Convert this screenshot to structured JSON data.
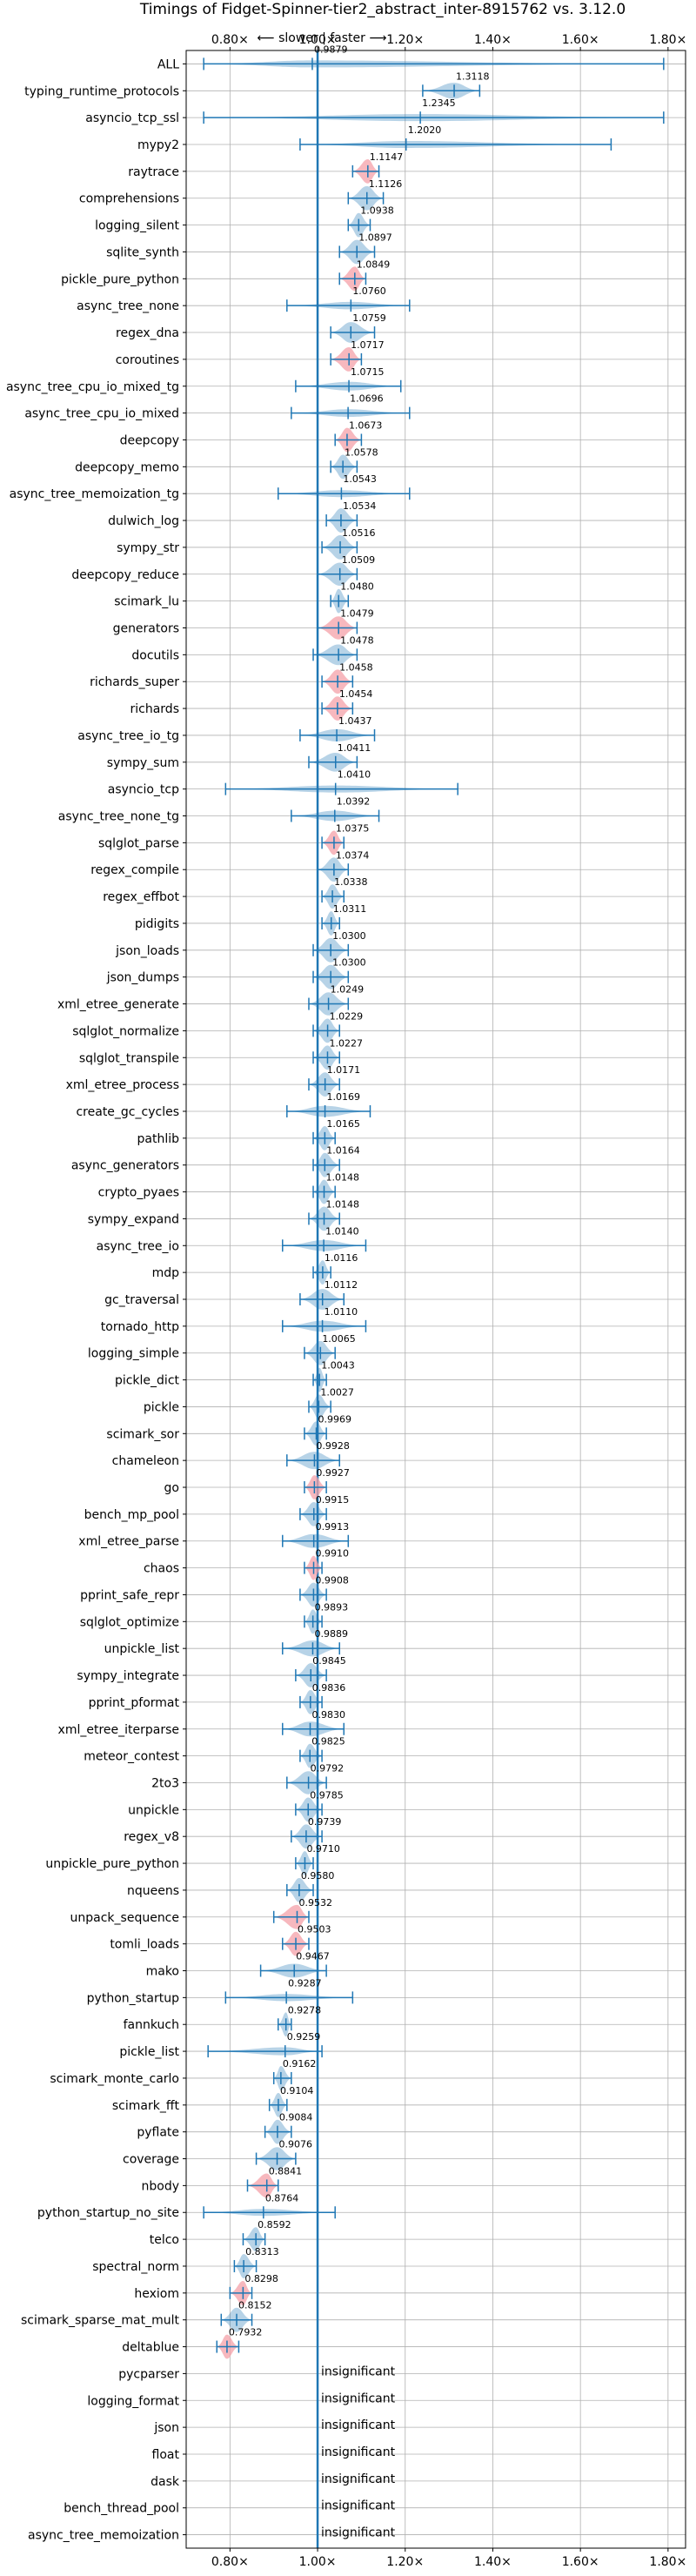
{
  "chart_data": {
    "type": "violin",
    "title": "Timings of Fidget-Spinner-tier2_abstract_inter-8915762 vs. 3.12.0",
    "subtitle": "⟵ slower | faster ⟶",
    "x_scale": "linear",
    "xlim": [
      0.7,
      1.84
    ],
    "x_ticks": [
      0.8,
      1.0,
      1.2,
      1.4,
      1.6,
      1.8
    ],
    "x_tick_labels": [
      "0.80×",
      "1.00×",
      "1.20×",
      "1.40×",
      "1.60×",
      "1.80×"
    ],
    "reference_line": 1.0,
    "grid": true,
    "colors": {
      "normal": "#1f77b4",
      "significant": "#f4a0a8",
      "reference": "#1f77b4"
    },
    "insignificant_label": "insignificant",
    "benchmarks": [
      {
        "name": "ALL",
        "value": 0.9879,
        "label": "0.9879",
        "min": 0.74,
        "max": 1.79,
        "significant": false
      },
      {
        "name": "typing_runtime_protocols",
        "value": 1.3118,
        "label": "1.3118",
        "min": 1.24,
        "max": 1.37,
        "significant": false
      },
      {
        "name": "asyncio_tcp_ssl",
        "value": 1.2345,
        "label": "1.2345",
        "min": 0.74,
        "max": 1.79,
        "significant": false
      },
      {
        "name": "mypy2",
        "value": 1.202,
        "label": "1.2020",
        "min": 0.96,
        "max": 1.67,
        "significant": false
      },
      {
        "name": "raytrace",
        "value": 1.1147,
        "label": "1.1147",
        "min": 1.08,
        "max": 1.14,
        "significant": true
      },
      {
        "name": "comprehensions",
        "value": 1.1126,
        "label": "1.1126",
        "min": 1.07,
        "max": 1.15,
        "significant": false
      },
      {
        "name": "logging_silent",
        "value": 1.0938,
        "label": "1.0938",
        "min": 1.07,
        "max": 1.12,
        "significant": false
      },
      {
        "name": "sqlite_synth",
        "value": 1.0897,
        "label": "1.0897",
        "min": 1.05,
        "max": 1.13,
        "significant": false
      },
      {
        "name": "pickle_pure_python",
        "value": 1.0849,
        "label": "1.0849",
        "min": 1.05,
        "max": 1.11,
        "significant": true
      },
      {
        "name": "async_tree_none",
        "value": 1.076,
        "label": "1.0760",
        "min": 0.93,
        "max": 1.21,
        "significant": false
      },
      {
        "name": "regex_dna",
        "value": 1.0759,
        "label": "1.0759",
        "min": 1.03,
        "max": 1.13,
        "significant": false
      },
      {
        "name": "coroutines",
        "value": 1.0717,
        "label": "1.0717",
        "min": 1.03,
        "max": 1.1,
        "significant": true
      },
      {
        "name": "async_tree_cpu_io_mixed_tg",
        "value": 1.0715,
        "label": "1.0715",
        "min": 0.95,
        "max": 1.19,
        "significant": false
      },
      {
        "name": "async_tree_cpu_io_mixed",
        "value": 1.0696,
        "label": "1.0696",
        "min": 0.94,
        "max": 1.21,
        "significant": false
      },
      {
        "name": "deepcopy",
        "value": 1.0673,
        "label": "1.0673",
        "min": 1.04,
        "max": 1.1,
        "significant": true
      },
      {
        "name": "deepcopy_memo",
        "value": 1.0578,
        "label": "1.0578",
        "min": 1.03,
        "max": 1.09,
        "significant": false
      },
      {
        "name": "async_tree_memoization_tg",
        "value": 1.0543,
        "label": "1.0543",
        "min": 0.91,
        "max": 1.21,
        "significant": false
      },
      {
        "name": "dulwich_log",
        "value": 1.0534,
        "label": "1.0534",
        "min": 1.02,
        "max": 1.09,
        "significant": false
      },
      {
        "name": "sympy_str",
        "value": 1.0516,
        "label": "1.0516",
        "min": 1.01,
        "max": 1.09,
        "significant": false
      },
      {
        "name": "deepcopy_reduce",
        "value": 1.0509,
        "label": "1.0509",
        "min": 1.0,
        "max": 1.09,
        "significant": false
      },
      {
        "name": "scimark_lu",
        "value": 1.048,
        "label": "1.0480",
        "min": 1.03,
        "max": 1.07,
        "significant": false
      },
      {
        "name": "generators",
        "value": 1.0479,
        "label": "1.0479",
        "min": 1.0,
        "max": 1.09,
        "significant": true
      },
      {
        "name": "docutils",
        "value": 1.0478,
        "label": "1.0478",
        "min": 0.99,
        "max": 1.09,
        "significant": false
      },
      {
        "name": "richards_super",
        "value": 1.0458,
        "label": "1.0458",
        "min": 1.01,
        "max": 1.08,
        "significant": true
      },
      {
        "name": "richards",
        "value": 1.0454,
        "label": "1.0454",
        "min": 1.01,
        "max": 1.08,
        "significant": true
      },
      {
        "name": "async_tree_io_tg",
        "value": 1.0437,
        "label": "1.0437",
        "min": 0.96,
        "max": 1.13,
        "significant": false
      },
      {
        "name": "sympy_sum",
        "value": 1.0411,
        "label": "1.0411",
        "min": 0.98,
        "max": 1.09,
        "significant": false
      },
      {
        "name": "asyncio_tcp",
        "value": 1.041,
        "label": "1.0410",
        "min": 0.79,
        "max": 1.32,
        "significant": false
      },
      {
        "name": "async_tree_none_tg",
        "value": 1.0392,
        "label": "1.0392",
        "min": 0.94,
        "max": 1.14,
        "significant": false
      },
      {
        "name": "sqlglot_parse",
        "value": 1.0375,
        "label": "1.0375",
        "min": 1.01,
        "max": 1.06,
        "significant": true
      },
      {
        "name": "regex_compile",
        "value": 1.0374,
        "label": "1.0374",
        "min": 1.0,
        "max": 1.07,
        "significant": false
      },
      {
        "name": "regex_effbot",
        "value": 1.0338,
        "label": "1.0338",
        "min": 1.01,
        "max": 1.06,
        "significant": false
      },
      {
        "name": "pidigits",
        "value": 1.0311,
        "label": "1.0311",
        "min": 1.01,
        "max": 1.05,
        "significant": false
      },
      {
        "name": "json_loads",
        "value": 1.03,
        "label": "1.0300",
        "min": 0.99,
        "max": 1.07,
        "significant": false
      },
      {
        "name": "json_dumps",
        "value": 1.03,
        "label": "1.0300",
        "min": 0.99,
        "max": 1.07,
        "significant": false
      },
      {
        "name": "xml_etree_generate",
        "value": 1.0249,
        "label": "1.0249",
        "min": 0.98,
        "max": 1.07,
        "significant": false
      },
      {
        "name": "sqlglot_normalize",
        "value": 1.0229,
        "label": "1.0229",
        "min": 0.99,
        "max": 1.05,
        "significant": false
      },
      {
        "name": "sqlglot_transpile",
        "value": 1.0227,
        "label": "1.0227",
        "min": 0.99,
        "max": 1.05,
        "significant": false
      },
      {
        "name": "xml_etree_process",
        "value": 1.0171,
        "label": "1.0171",
        "min": 0.98,
        "max": 1.05,
        "significant": false
      },
      {
        "name": "create_gc_cycles",
        "value": 1.0169,
        "label": "1.0169",
        "min": 0.93,
        "max": 1.12,
        "significant": false
      },
      {
        "name": "pathlib",
        "value": 1.0165,
        "label": "1.0165",
        "min": 0.99,
        "max": 1.04,
        "significant": false
      },
      {
        "name": "async_generators",
        "value": 1.0164,
        "label": "1.0164",
        "min": 0.99,
        "max": 1.05,
        "significant": false
      },
      {
        "name": "crypto_pyaes",
        "value": 1.0148,
        "label": "1.0148",
        "min": 0.99,
        "max": 1.04,
        "significant": false
      },
      {
        "name": "sympy_expand",
        "value": 1.0148,
        "label": "1.0148",
        "min": 0.98,
        "max": 1.05,
        "significant": false
      },
      {
        "name": "async_tree_io",
        "value": 1.014,
        "label": "1.0140",
        "min": 0.92,
        "max": 1.11,
        "significant": false
      },
      {
        "name": "mdp",
        "value": 1.0116,
        "label": "1.0116",
        "min": 0.99,
        "max": 1.03,
        "significant": false
      },
      {
        "name": "gc_traversal",
        "value": 1.0112,
        "label": "1.0112",
        "min": 0.96,
        "max": 1.06,
        "significant": false
      },
      {
        "name": "tornado_http",
        "value": 1.011,
        "label": "1.0110",
        "min": 0.92,
        "max": 1.11,
        "significant": false
      },
      {
        "name": "logging_simple",
        "value": 1.0065,
        "label": "1.0065",
        "min": 0.97,
        "max": 1.04,
        "significant": false
      },
      {
        "name": "pickle_dict",
        "value": 1.0043,
        "label": "1.0043",
        "min": 0.99,
        "max": 1.02,
        "significant": false
      },
      {
        "name": "pickle",
        "value": 1.0027,
        "label": "1.0027",
        "min": 0.98,
        "max": 1.03,
        "significant": false
      },
      {
        "name": "scimark_sor",
        "value": 0.9969,
        "label": "0.9969",
        "min": 0.97,
        "max": 1.02,
        "significant": false
      },
      {
        "name": "chameleon",
        "value": 0.9928,
        "label": "0.9928",
        "min": 0.93,
        "max": 1.05,
        "significant": false
      },
      {
        "name": "go",
        "value": 0.9927,
        "label": "0.9927",
        "min": 0.97,
        "max": 1.02,
        "significant": true
      },
      {
        "name": "bench_mp_pool",
        "value": 0.9915,
        "label": "0.9915",
        "min": 0.96,
        "max": 1.02,
        "significant": false
      },
      {
        "name": "xml_etree_parse",
        "value": 0.9913,
        "label": "0.9913",
        "min": 0.92,
        "max": 1.07,
        "significant": false
      },
      {
        "name": "chaos",
        "value": 0.991,
        "label": "0.9910",
        "min": 0.97,
        "max": 1.01,
        "significant": true
      },
      {
        "name": "pprint_safe_repr",
        "value": 0.9908,
        "label": "0.9908",
        "min": 0.96,
        "max": 1.02,
        "significant": false
      },
      {
        "name": "sqlglot_optimize",
        "value": 0.9893,
        "label": "0.9893",
        "min": 0.97,
        "max": 1.01,
        "significant": false
      },
      {
        "name": "unpickle_list",
        "value": 0.9889,
        "label": "0.9889",
        "min": 0.92,
        "max": 1.05,
        "significant": false
      },
      {
        "name": "sympy_integrate",
        "value": 0.9845,
        "label": "0.9845",
        "min": 0.95,
        "max": 1.02,
        "significant": false
      },
      {
        "name": "pprint_pformat",
        "value": 0.9836,
        "label": "0.9836",
        "min": 0.96,
        "max": 1.01,
        "significant": false
      },
      {
        "name": "xml_etree_iterparse",
        "value": 0.983,
        "label": "0.9830",
        "min": 0.92,
        "max": 1.06,
        "significant": false
      },
      {
        "name": "meteor_contest",
        "value": 0.9825,
        "label": "0.9825",
        "min": 0.96,
        "max": 1.01,
        "significant": false
      },
      {
        "name": "2to3",
        "value": 0.9792,
        "label": "0.9792",
        "min": 0.93,
        "max": 1.02,
        "significant": false
      },
      {
        "name": "unpickle",
        "value": 0.9785,
        "label": "0.9785",
        "min": 0.95,
        "max": 1.01,
        "significant": false
      },
      {
        "name": "regex_v8",
        "value": 0.9739,
        "label": "0.9739",
        "min": 0.94,
        "max": 1.01,
        "significant": false
      },
      {
        "name": "unpickle_pure_python",
        "value": 0.971,
        "label": "0.9710",
        "min": 0.95,
        "max": 0.99,
        "significant": false
      },
      {
        "name": "nqueens",
        "value": 0.958,
        "label": "0.9580",
        "min": 0.93,
        "max": 0.99,
        "significant": false
      },
      {
        "name": "unpack_sequence",
        "value": 0.9532,
        "label": "0.9532",
        "min": 0.9,
        "max": 0.98,
        "significant": true
      },
      {
        "name": "tomli_loads",
        "value": 0.9503,
        "label": "0.9503",
        "min": 0.92,
        "max": 0.98,
        "significant": true
      },
      {
        "name": "mako",
        "value": 0.9467,
        "label": "0.9467",
        "min": 0.87,
        "max": 1.02,
        "significant": false
      },
      {
        "name": "python_startup",
        "value": 0.9287,
        "label": "0.9287",
        "min": 0.79,
        "max": 1.08,
        "significant": false
      },
      {
        "name": "fannkuch",
        "value": 0.9278,
        "label": "0.9278",
        "min": 0.91,
        "max": 0.94,
        "significant": false
      },
      {
        "name": "pickle_list",
        "value": 0.9259,
        "label": "0.9259",
        "min": 0.75,
        "max": 1.01,
        "significant": false
      },
      {
        "name": "scimark_monte_carlo",
        "value": 0.9162,
        "label": "0.9162",
        "min": 0.9,
        "max": 0.94,
        "significant": false
      },
      {
        "name": "scimark_fft",
        "value": 0.9104,
        "label": "0.9104",
        "min": 0.89,
        "max": 0.93,
        "significant": false
      },
      {
        "name": "pyflate",
        "value": 0.9084,
        "label": "0.9084",
        "min": 0.88,
        "max": 0.94,
        "significant": false
      },
      {
        "name": "coverage",
        "value": 0.9076,
        "label": "0.9076",
        "min": 0.86,
        "max": 0.95,
        "significant": false
      },
      {
        "name": "nbody",
        "value": 0.8841,
        "label": "0.8841",
        "min": 0.84,
        "max": 0.91,
        "significant": true
      },
      {
        "name": "python_startup_no_site",
        "value": 0.8764,
        "label": "0.8764",
        "min": 0.74,
        "max": 1.04,
        "significant": false
      },
      {
        "name": "telco",
        "value": 0.8592,
        "label": "0.8592",
        "min": 0.83,
        "max": 0.88,
        "significant": false
      },
      {
        "name": "spectral_norm",
        "value": 0.8313,
        "label": "0.8313",
        "min": 0.81,
        "max": 0.86,
        "significant": false
      },
      {
        "name": "hexiom",
        "value": 0.8298,
        "label": "0.8298",
        "min": 0.8,
        "max": 0.85,
        "significant": true
      },
      {
        "name": "scimark_sparse_mat_mult",
        "value": 0.8152,
        "label": "0.8152",
        "min": 0.78,
        "max": 0.85,
        "significant": false
      },
      {
        "name": "deltablue",
        "value": 0.7932,
        "label": "0.7932",
        "min": 0.77,
        "max": 0.82,
        "significant": true
      },
      {
        "name": "pycparser",
        "value": null,
        "label": "insignificant",
        "min": null,
        "max": null,
        "significant": false
      },
      {
        "name": "logging_format",
        "value": null,
        "label": "insignificant",
        "min": null,
        "max": null,
        "significant": false
      },
      {
        "name": "json",
        "value": null,
        "label": "insignificant",
        "min": null,
        "max": null,
        "significant": false
      },
      {
        "name": "float",
        "value": null,
        "label": "insignificant",
        "min": null,
        "max": null,
        "significant": false
      },
      {
        "name": "dask",
        "value": null,
        "label": "insignificant",
        "min": null,
        "max": null,
        "significant": false
      },
      {
        "name": "bench_thread_pool",
        "value": null,
        "label": "insignificant",
        "min": null,
        "max": null,
        "significant": false
      },
      {
        "name": "async_tree_memoization",
        "value": null,
        "label": "insignificant",
        "min": null,
        "max": null,
        "significant": false
      }
    ]
  }
}
